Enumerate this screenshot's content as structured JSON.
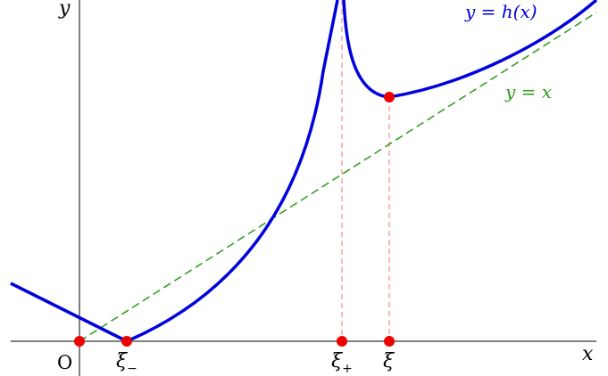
{
  "labels": {
    "y_axis": "y",
    "x_axis": "x",
    "origin": "O",
    "curve_h": "y = h(x)",
    "line_yx": "y = x",
    "xi_minus_base": "ξ",
    "xi_minus_sub": "−",
    "xi_plus_base": "ξ",
    "xi_plus_sub": "+",
    "xi": "ξ"
  },
  "colors": {
    "curve": "#0000dd",
    "line": "#2a9a1a",
    "marker": "#ee0000",
    "dashed_guide": "#ff8888",
    "axes": "#000000"
  }
}
